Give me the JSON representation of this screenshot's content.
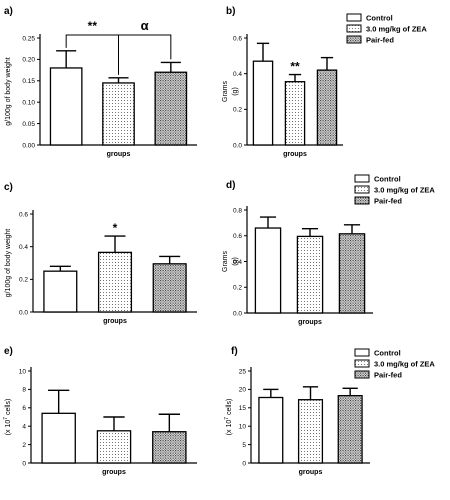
{
  "colors": {
    "control": "#ffffff",
    "zea": "pattern-dots",
    "pair_fed": "pattern-dense"
  },
  "chart_data": [
    {
      "panel": "a)",
      "type": "bar",
      "categories": [
        "Control",
        "3.0 mg/kg of ZEA",
        "Pair-fed"
      ],
      "values": [
        0.18,
        0.145,
        0.17
      ],
      "errors": [
        0.04,
        0.012,
        0.023
      ],
      "xlabel": "groups",
      "ylabel": "g/100g of body weight",
      "ylim": [
        0,
        0.25
      ],
      "yticks": [
        0.0,
        0.05,
        0.1,
        0.15,
        0.2,
        0.25
      ],
      "ytick_labels": [
        "0.00",
        "0.05",
        "0.10",
        "0.15",
        "0.20",
        "0.25"
      ],
      "legend": false,
      "annotations": [
        {
          "text": "**",
          "between": [
            0,
            1
          ]
        },
        {
          "text": "α",
          "between": [
            1,
            2
          ]
        }
      ]
    },
    {
      "panel": "b)",
      "type": "bar",
      "categories": [
        "Control",
        "3.0 mg/kg of ZEA",
        "Pair-fed"
      ],
      "values": [
        0.47,
        0.355,
        0.42
      ],
      "errors": [
        0.1,
        0.04,
        0.07
      ],
      "xlabel": "groups",
      "ylabel": "Grams\n(g)",
      "ylim": [
        0,
        0.6
      ],
      "yticks": [
        0.0,
        0.2,
        0.4,
        0.6
      ],
      "ytick_labels": [
        "0.0",
        "0.2",
        "0.4",
        "0.6"
      ],
      "legend": true,
      "legend_position": "top-right",
      "annotations": [
        {
          "text": "**",
          "bar": 1
        }
      ]
    },
    {
      "panel": "c)",
      "type": "bar",
      "categories": [
        "Control",
        "3.0 mg/kg of ZEA",
        "Pair-fed"
      ],
      "values": [
        0.25,
        0.365,
        0.295
      ],
      "errors": [
        0.03,
        0.1,
        0.045
      ],
      "xlabel": "groups",
      "ylabel": "g/100g of body weight",
      "ylim": [
        0,
        0.6
      ],
      "yticks": [
        0.0,
        0.2,
        0.4,
        0.6
      ],
      "ytick_labels": [
        "0.0",
        "0.2",
        "0.4",
        "0.6"
      ],
      "legend": false,
      "annotations": [
        {
          "text": "*",
          "bar": 1
        }
      ]
    },
    {
      "panel": "d)",
      "type": "bar",
      "categories": [
        "Control",
        "3.0 mg/kg of ZEA",
        "Pair-fed"
      ],
      "values": [
        0.66,
        0.595,
        0.615
      ],
      "errors": [
        0.085,
        0.06,
        0.07
      ],
      "xlabel": "groups",
      "ylabel": "Grams\n(g)",
      "ylim": [
        0,
        0.8
      ],
      "yticks": [
        0.0,
        0.2,
        0.4,
        0.6,
        0.8
      ],
      "ytick_labels": [
        "0.0",
        "0.2",
        "0.4",
        "0.6",
        "0.8"
      ],
      "legend": true,
      "legend_position": "top-right",
      "annotations": []
    },
    {
      "panel": "e)",
      "type": "bar",
      "categories": [
        "Control",
        "3.0 mg/kg of ZEA",
        "Pair-fed"
      ],
      "values": [
        5.4,
        3.5,
        3.4
      ],
      "errors": [
        2.5,
        1.5,
        1.9
      ],
      "xlabel": "groups",
      "ylabel": "(x 10^7 cells)",
      "ylim": [
        0,
        10
      ],
      "yticks": [
        0,
        2,
        4,
        6,
        8,
        10
      ],
      "ytick_labels": [
        "0",
        "2",
        "4",
        "6",
        "8",
        "10"
      ],
      "legend": false,
      "annotations": []
    },
    {
      "panel": "f)",
      "type": "bar",
      "categories": [
        "Control",
        "3.0 mg/kg of ZEA",
        "Pair-fed"
      ],
      "values": [
        17.8,
        17.2,
        18.3
      ],
      "errors": [
        2.2,
        3.5,
        2.0
      ],
      "xlabel": "groups",
      "ylabel": "(x 10^7 cells)",
      "ylim": [
        0,
        25
      ],
      "yticks": [
        0,
        5,
        10,
        15,
        20,
        25
      ],
      "ytick_labels": [
        "0",
        "5",
        "10",
        "15",
        "20",
        "25"
      ],
      "legend": true,
      "legend_position": "top-right",
      "annotations": []
    }
  ]
}
